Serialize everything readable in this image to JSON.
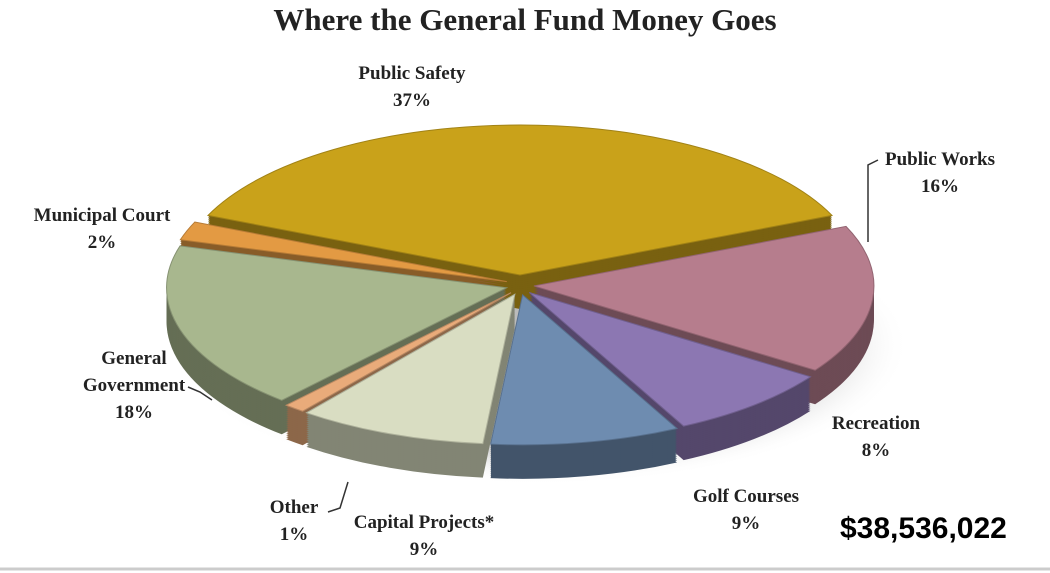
{
  "chart_data": {
    "type": "pie",
    "title": "Where the General Fund Money Goes",
    "categories": [
      "Public Safety",
      "Public Works",
      "Recreation",
      "Golf Courses",
      "Capital Projects*",
      "Other",
      "General Government",
      "Municipal Court"
    ],
    "values": [
      37,
      16,
      8,
      9,
      9,
      1,
      18,
      2
    ],
    "value_labels": [
      "37%",
      "16%",
      "8%",
      "9%",
      "9%",
      "1%",
      "18%",
      "2%"
    ],
    "colors": [
      "#c9a21a",
      "#b67d8d",
      "#8c77b2",
      "#6e8cb0",
      "#d9ddc2",
      "#e9ab7a",
      "#a8b78e",
      "#e39a43"
    ],
    "annotation": "$38,536,022"
  }
}
